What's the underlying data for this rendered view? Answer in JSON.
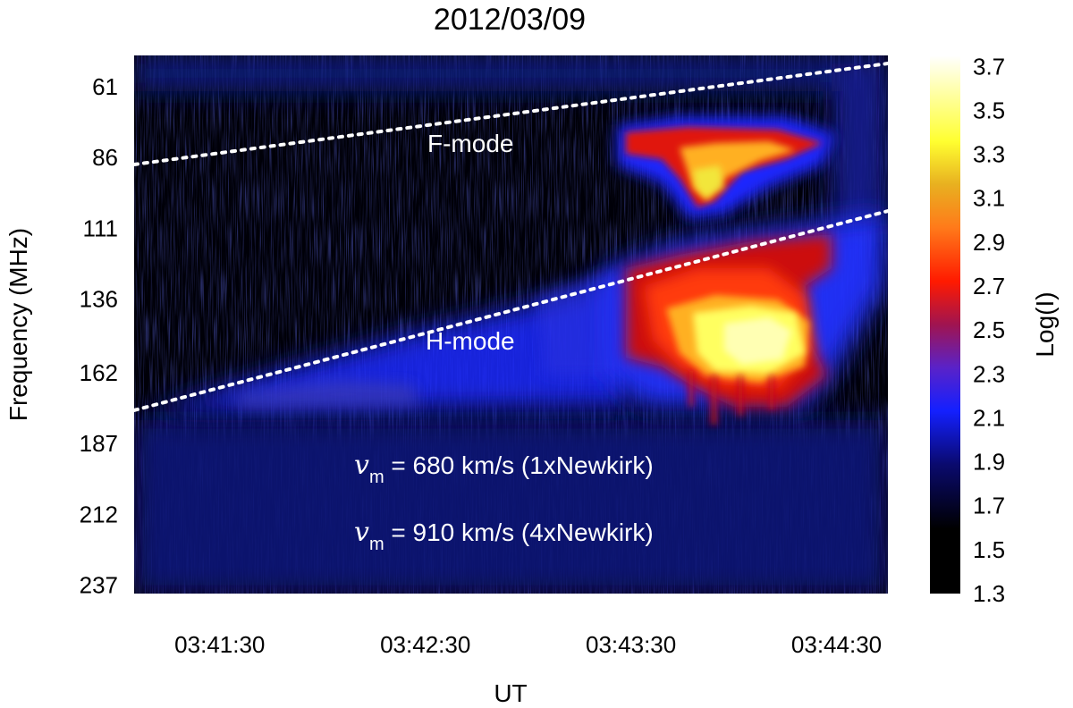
{
  "chart_data": {
    "type": "heatmap",
    "title": "2012/03/09",
    "xlabel": "UT",
    "ylabel": "Frequency (MHz)",
    "x_ticks": [
      "03:41:30",
      "03:42:30",
      "03:43:30",
      "03:44:30"
    ],
    "y_ticks": [
      "61",
      "86",
      "111",
      "136",
      "162",
      "187",
      "212",
      "237"
    ],
    "y_direction": "increasing downward",
    "xlim": [
      "03:41:05",
      "03:44:45"
    ],
    "ylim": [
      50,
      240
    ],
    "colorbar": {
      "label": "Log(I)",
      "ticks": [
        "1.3",
        "1.5",
        "1.7",
        "1.9",
        "2.1",
        "2.3",
        "2.5",
        "2.7",
        "2.9",
        "3.1",
        "3.3",
        "3.5",
        "3.7"
      ],
      "range": [
        1.3,
        3.75
      ]
    },
    "annotations": {
      "f_mode": "F-mode",
      "h_mode": "H-mode",
      "speed_1": {
        "symbol": "v",
        "subscript": "m",
        "text": " = 680 km/s (1xNewkirk)"
      },
      "speed_2": {
        "symbol": "v",
        "subscript": "m",
        "text": " = 910 km/s (4xNewkirk)"
      }
    },
    "fit_lines": [
      {
        "name": "F-mode",
        "start": [
          "03:41:05",
          84
        ],
        "end": [
          "03:44:45",
          53
        ]
      },
      {
        "name": "H-mode",
        "start": [
          "03:41:05",
          167
        ],
        "end": [
          "03:44:45",
          115
        ]
      }
    ],
    "emission_regions": [
      {
        "band": "F-mode",
        "time": [
          "03:43:25",
          "03:44:15"
        ],
        "freq": [
          75,
          100
        ],
        "peak_log_i": 3.2
      },
      {
        "band": "H-mode",
        "time": [
          "03:43:25",
          "03:44:20"
        ],
        "freq": [
          115,
          168
        ],
        "peak_log_i": 3.5
      },
      {
        "band": "H-mode precursor",
        "time": [
          "03:41:20",
          "03:43:00"
        ],
        "freq": [
          145,
          168
        ],
        "peak_log_i": 2.1
      }
    ]
  }
}
